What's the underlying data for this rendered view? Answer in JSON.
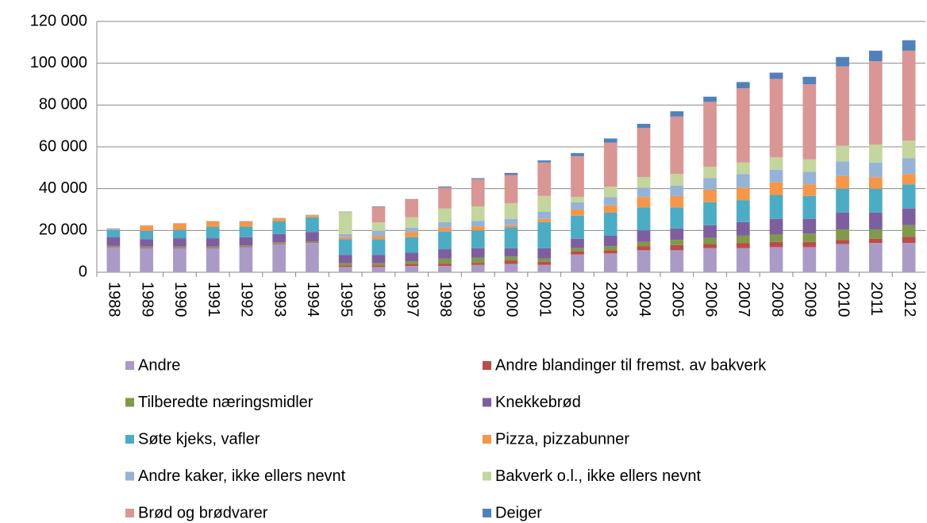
{
  "chart_data": {
    "type": "stacked_bar",
    "categories": [
      "1988",
      "1989",
      "1990",
      "1991",
      "1992",
      "1993",
      "1994",
      "1995",
      "1996",
      "1997",
      "1998",
      "1999",
      "2000",
      "2001",
      "2002",
      "2003",
      "2004",
      "2005",
      "2006",
      "2007",
      "2008",
      "2009",
      "2010",
      "2011",
      "2012"
    ],
    "ylim": [
      0,
      120000
    ],
    "yticks": [
      0,
      {
        "value": 20000,
        "label": "20 000"
      },
      {
        "value": 40000,
        "label": "40 000"
      },
      {
        "value": 60000,
        "label": "60 000"
      },
      {
        "value": 80000,
        "label": "80 000"
      },
      {
        "value": 100000,
        "label": "100 000"
      },
      {
        "value": 120000,
        "label": "120 000"
      }
    ],
    "grid": true,
    "legend": "bottom",
    "series": [
      {
        "name": "Andre",
        "color": "#a99bc6",
        "values": [
          12000,
          11500,
          11500,
          11500,
          12000,
          13500,
          14000,
          2500,
          2500,
          3000,
          3000,
          3500,
          4000,
          3500,
          8500,
          9000,
          10500,
          10500,
          11500,
          11500,
          12000,
          12000,
          13500,
          14000,
          14000
        ]
      },
      {
        "name": "Andre blandinger til fremst. av bakverk",
        "color": "#be4b48",
        "values": [
          300,
          300,
          300,
          300,
          300,
          300,
          300,
          800,
          800,
          800,
          1000,
          1000,
          1500,
          1500,
          1500,
          1500,
          2000,
          2500,
          2000,
          2500,
          2500,
          2500,
          2000,
          2000,
          3000
        ]
      },
      {
        "name": "Tilberedte næringsmidler",
        "color": "#7f9a48",
        "values": [
          400,
          500,
          500,
          500,
          500,
          500,
          500,
          1000,
          1000,
          1500,
          2500,
          2500,
          2000,
          1500,
          1500,
          2000,
          2000,
          2500,
          3000,
          3500,
          3500,
          4000,
          5000,
          4500,
          5500
        ]
      },
      {
        "name": "Knekkebrød",
        "color": "#7d5fa0",
        "values": [
          4000,
          3500,
          4000,
          4000,
          4000,
          4000,
          4500,
          4000,
          4000,
          4000,
          4500,
          4500,
          4000,
          5000,
          4500,
          5000,
          5500,
          5500,
          6000,
          6500,
          7500,
          7000,
          8000,
          8000,
          8000
        ]
      },
      {
        "name": "Søte kjeks, vafler",
        "color": "#4bacc6",
        "values": [
          3500,
          4000,
          4000,
          5500,
          5000,
          6000,
          7000,
          7500,
          7500,
          7500,
          8500,
          8500,
          10000,
          12500,
          11000,
          11000,
          11000,
          10000,
          11000,
          10500,
          11500,
          11000,
          11500,
          11500,
          11500
        ]
      },
      {
        "name": "Pizza, pizzabunner",
        "color": "#f79646",
        "values": [
          300,
          2500,
          3000,
          2500,
          2500,
          1500,
          1000,
          1000,
          1500,
          2500,
          2000,
          2000,
          1000,
          1500,
          3000,
          3500,
          5000,
          5500,
          6000,
          6000,
          6000,
          5500,
          6000,
          5500,
          5000
        ]
      },
      {
        "name": "Andre kaker, ikke ellers nevnt",
        "color": "#95b3d7",
        "values": [
          500,
          200,
          200,
          200,
          200,
          200,
          200,
          1500,
          2500,
          2000,
          2500,
          2500,
          3000,
          3500,
          3500,
          4000,
          4500,
          5000,
          5500,
          6500,
          6000,
          6000,
          7000,
          7000,
          7500
        ]
      },
      {
        "name": "Bakverk o.l., ikke ellers nevnt",
        "color": "#c3d69b",
        "values": [
          0,
          0,
          0,
          0,
          0,
          0,
          0,
          10500,
          4000,
          5000,
          6500,
          7000,
          7500,
          7500,
          2500,
          5000,
          5000,
          5500,
          5500,
          5500,
          6000,
          6000,
          7500,
          8500,
          8500
        ]
      },
      {
        "name": "Brød og brødvarer",
        "color": "#d99694",
        "values": [
          0,
          0,
          0,
          0,
          0,
          0,
          0,
          0,
          7500,
          8500,
          10000,
          13000,
          13500,
          16000,
          19500,
          21000,
          23500,
          27500,
          31000,
          35500,
          37500,
          36000,
          38000,
          40000,
          43000
        ]
      },
      {
        "name": "Deiger",
        "color": "#4f81bd",
        "values": [
          0,
          0,
          0,
          0,
          0,
          0,
          0,
          200,
          200,
          200,
          500,
          500,
          1000,
          1000,
          1500,
          2000,
          2000,
          2500,
          2500,
          3000,
          3000,
          3500,
          4500,
          5000,
          5000
        ]
      }
    ]
  }
}
